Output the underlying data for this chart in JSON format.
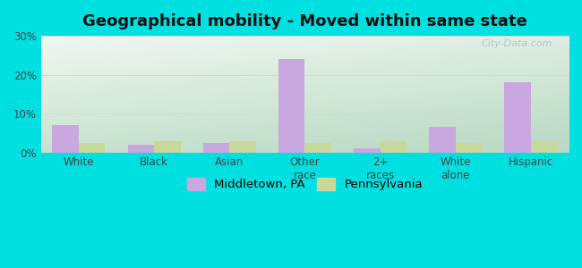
{
  "title": "Geographical mobility - Moved within same state",
  "categories": [
    "White",
    "Black",
    "Asian",
    "Other\nrace",
    "2+\nraces",
    "White\nalone",
    "Hispanic"
  ],
  "middletown_values": [
    7.0,
    2.0,
    2.5,
    24.0,
    1.0,
    6.5,
    18.0
  ],
  "pennsylvania_values": [
    2.5,
    3.0,
    3.0,
    2.5,
    3.0,
    2.5,
    3.0
  ],
  "middletown_color": "#c9a8e0",
  "pennsylvania_color": "#c8d89a",
  "bar_width": 0.35,
  "ylim": [
    0,
    30
  ],
  "yticks": [
    0,
    10,
    20,
    30
  ],
  "ytick_labels": [
    "0%",
    "10%",
    "20%",
    "30%"
  ],
  "background_outer": "#00e0e0",
  "grid_color": "#ccddcc",
  "title_fontsize": 13,
  "legend_label_middletown": "Middletown, PA",
  "legend_label_pennsylvania": "Pennsylvania",
  "watermark": "City-Data.com",
  "bg_top_left": "#f5faf5",
  "bg_bottom_right": "#b8e8d0"
}
